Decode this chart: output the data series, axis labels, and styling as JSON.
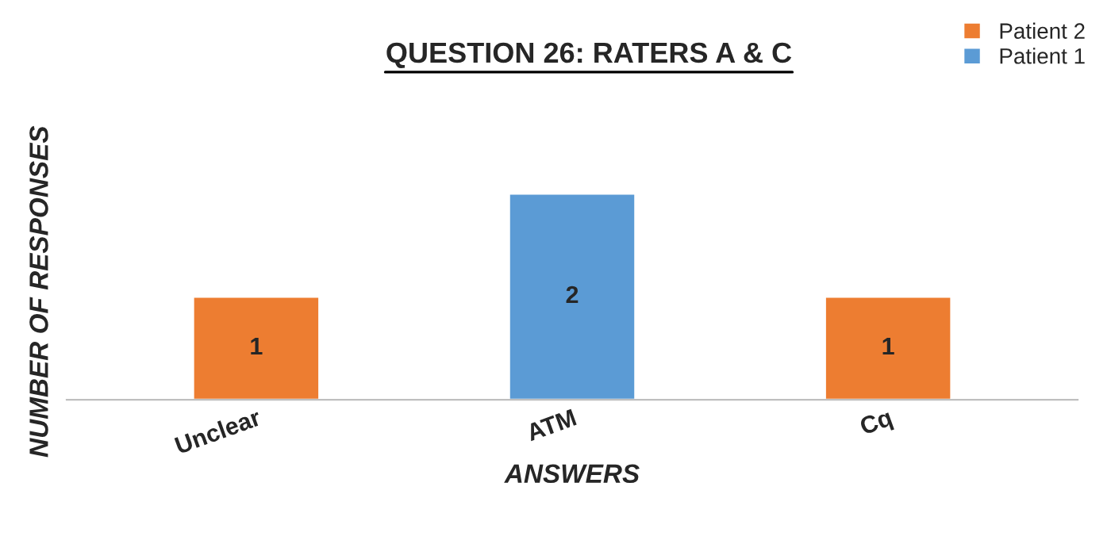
{
  "chart_data": {
    "type": "bar",
    "title": "QUESTION 26: RATERS A & C",
    "xlabel": "ANSWERS",
    "ylabel": "NUMBER OF RESPONSES",
    "categories": [
      "Unclear",
      "ATM",
      "Cq"
    ],
    "series": [
      {
        "name": "Patient 2",
        "color": "#ed7d31",
        "values": [
          1,
          null,
          1
        ]
      },
      {
        "name": "Patient 1",
        "color": "#5b9bd5",
        "values": [
          null,
          2,
          null
        ]
      }
    ],
    "stacked": true,
    "data_labels": true,
    "tick_labels": "x",
    "grid": false,
    "legend": "top right"
  }
}
